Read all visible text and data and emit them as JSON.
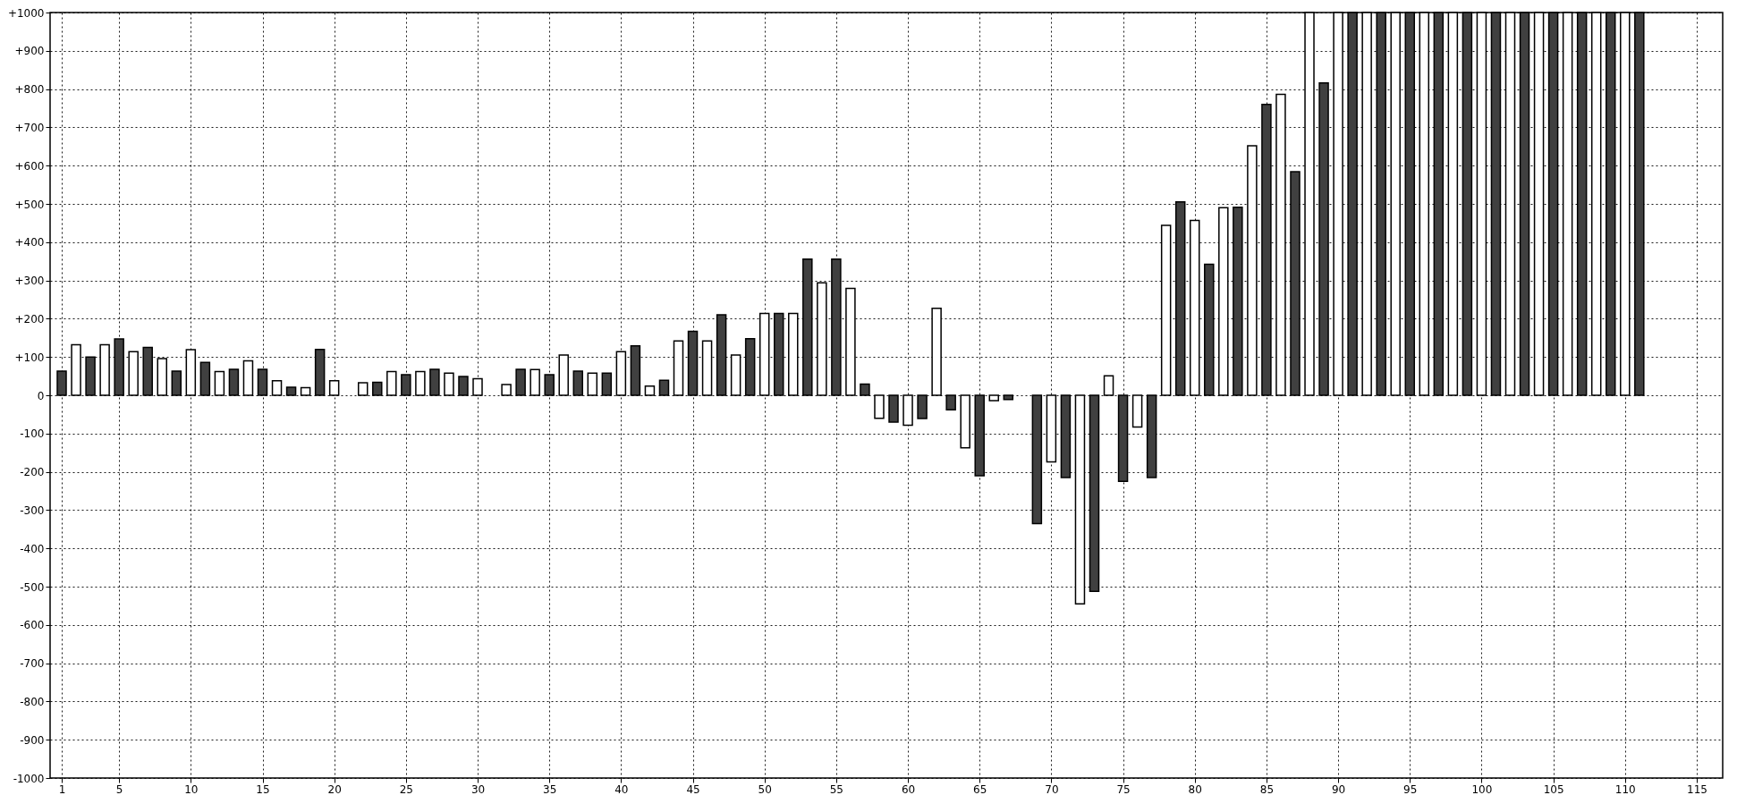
{
  "chart_data": {
    "type": "bar",
    "x": [
      1,
      2,
      3,
      4,
      5,
      6,
      7,
      8,
      9,
      10,
      11,
      12,
      13,
      14,
      15,
      16,
      17,
      18,
      19,
      20,
      21,
      22,
      23,
      24,
      25,
      26,
      27,
      28,
      29,
      30,
      31,
      32,
      33,
      34,
      35,
      36,
      37,
      38,
      39,
      40,
      41,
      42,
      43,
      44,
      45,
      46,
      47,
      48,
      49,
      50,
      51,
      52,
      53,
      54,
      55,
      56,
      57,
      58,
      59,
      60,
      61,
      62,
      63,
      64,
      65,
      66,
      67,
      68,
      69,
      70,
      71,
      72,
      73,
      74,
      75,
      76,
      77,
      78,
      79,
      80,
      81,
      82,
      83,
      84,
      85,
      86,
      87,
      88,
      89,
      90,
      91,
      92,
      93,
      94,
      95,
      96,
      97,
      98,
      99,
      100,
      101,
      102,
      103,
      104,
      105,
      106,
      107,
      108,
      109,
      110,
      111
    ],
    "values": [
      63,
      132,
      100,
      132,
      147,
      114,
      125,
      96,
      63,
      119,
      86,
      62,
      68,
      90,
      68,
      38,
      21,
      20,
      120,
      38,
      null,
      33,
      34,
      62,
      54,
      62,
      68,
      58,
      49,
      43,
      null,
      28,
      68,
      67,
      54,
      105,
      63,
      58,
      58,
      114,
      129,
      24,
      39,
      142,
      167,
      142,
      210,
      105,
      148,
      214,
      214,
      214,
      356,
      294,
      356,
      279,
      29,
      -60,
      -70,
      -78,
      -61,
      227,
      -38,
      -137,
      -210,
      -14,
      -11,
      null,
      -335,
      -174,
      -215,
      -545,
      -512,
      51,
      -225,
      -83,
      -215,
      444,
      505,
      457,
      342,
      490,
      491,
      652,
      760,
      786,
      584,
      1000,
      816,
      1000,
      1000,
      1000,
      1000,
      1000,
      1000,
      1000,
      1000,
      1000,
      1000,
      1000,
      1000,
      1000,
      1000,
      1000,
      1000,
      1000,
      1000,
      1000,
      1000,
      1000,
      1000
    ],
    "colors": [
      "#404040",
      "#ffffff",
      "#404040",
      "#ffffff",
      "#404040",
      "#ffffff",
      "#404040",
      "#ffffff",
      "#404040",
      "#ffffff",
      "#404040",
      "#ffffff",
      "#404040",
      "#ffffff",
      "#404040",
      "#ffffff",
      "#404040",
      "#ffffff",
      "#404040",
      "#ffffff",
      "#404040",
      "#ffffff",
      "#404040",
      "#ffffff",
      "#404040",
      "#ffffff",
      "#404040",
      "#ffffff",
      "#404040",
      "#ffffff",
      "#404040",
      "#ffffff",
      "#404040",
      "#ffffff",
      "#404040",
      "#ffffff",
      "#404040",
      "#ffffff",
      "#404040",
      "#ffffff",
      "#404040",
      "#ffffff",
      "#404040",
      "#ffffff",
      "#404040",
      "#ffffff",
      "#404040",
      "#ffffff",
      "#404040",
      "#ffffff",
      "#404040",
      "#ffffff",
      "#404040",
      "#ffffff",
      "#404040",
      "#ffffff",
      "#404040",
      "#ffffff",
      "#404040",
      "#ffffff",
      "#404040",
      "#ffffff",
      "#404040",
      "#ffffff",
      "#404040",
      "#ffffff",
      "#404040",
      "#ffffff",
      "#404040",
      "#ffffff",
      "#404040",
      "#ffffff",
      "#404040",
      "#ffffff",
      "#404040",
      "#ffffff",
      "#404040",
      "#ffffff",
      "#404040",
      "#ffffff",
      "#404040",
      "#ffffff",
      "#404040",
      "#ffffff",
      "#404040",
      "#ffffff",
      "#404040",
      "#ffffff",
      "#404040",
      "#ffffff",
      "#404040",
      "#ffffff",
      "#404040",
      "#ffffff",
      "#404040",
      "#ffffff",
      "#404040",
      "#ffffff",
      "#404040",
      "#ffffff",
      "#404040",
      "#ffffff",
      "#404040",
      "#ffffff",
      "#404040",
      "#ffffff",
      "#404040",
      "#ffffff",
      "#404040",
      "#ffffff",
      "#404040"
    ],
    "xlim": [
      0.5,
      116.5
    ],
    "xticks": [
      1,
      5,
      10,
      15,
      20,
      25,
      30,
      35,
      40,
      45,
      50,
      55,
      60,
      65,
      70,
      75,
      80,
      85,
      90,
      95,
      100,
      105,
      110,
      115
    ],
    "ylim": [
      -1000,
      1000
    ],
    "yticks": [
      {
        "value": -1000,
        "label": "-1000"
      },
      {
        "value": -900,
        "label": "-900"
      },
      {
        "value": -800,
        "label": "-800"
      },
      {
        "value": -700,
        "label": "-700"
      },
      {
        "value": -600,
        "label": "-600"
      },
      {
        "value": -500,
        "label": "-500"
      },
      {
        "value": -400,
        "label": "-400"
      },
      {
        "value": -300,
        "label": "-300"
      },
      {
        "value": -200,
        "label": "-200"
      },
      {
        "value": -100,
        "label": "-100"
      },
      0,
      {
        "value": 100,
        "label": "+100"
      },
      {
        "value": 200,
        "label": "+200"
      },
      {
        "value": 300,
        "label": "+300"
      },
      {
        "value": 400,
        "label": "+400"
      },
      {
        "value": 500,
        "label": "+500"
      },
      {
        "value": 600,
        "label": "+600"
      },
      {
        "value": 700,
        "label": "+700"
      },
      {
        "value": 800,
        "label": "+800"
      },
      {
        "value": 900,
        "label": "+900"
      },
      {
        "value": 1000,
        "label": "+1000"
      }
    ],
    "grid": true
  }
}
